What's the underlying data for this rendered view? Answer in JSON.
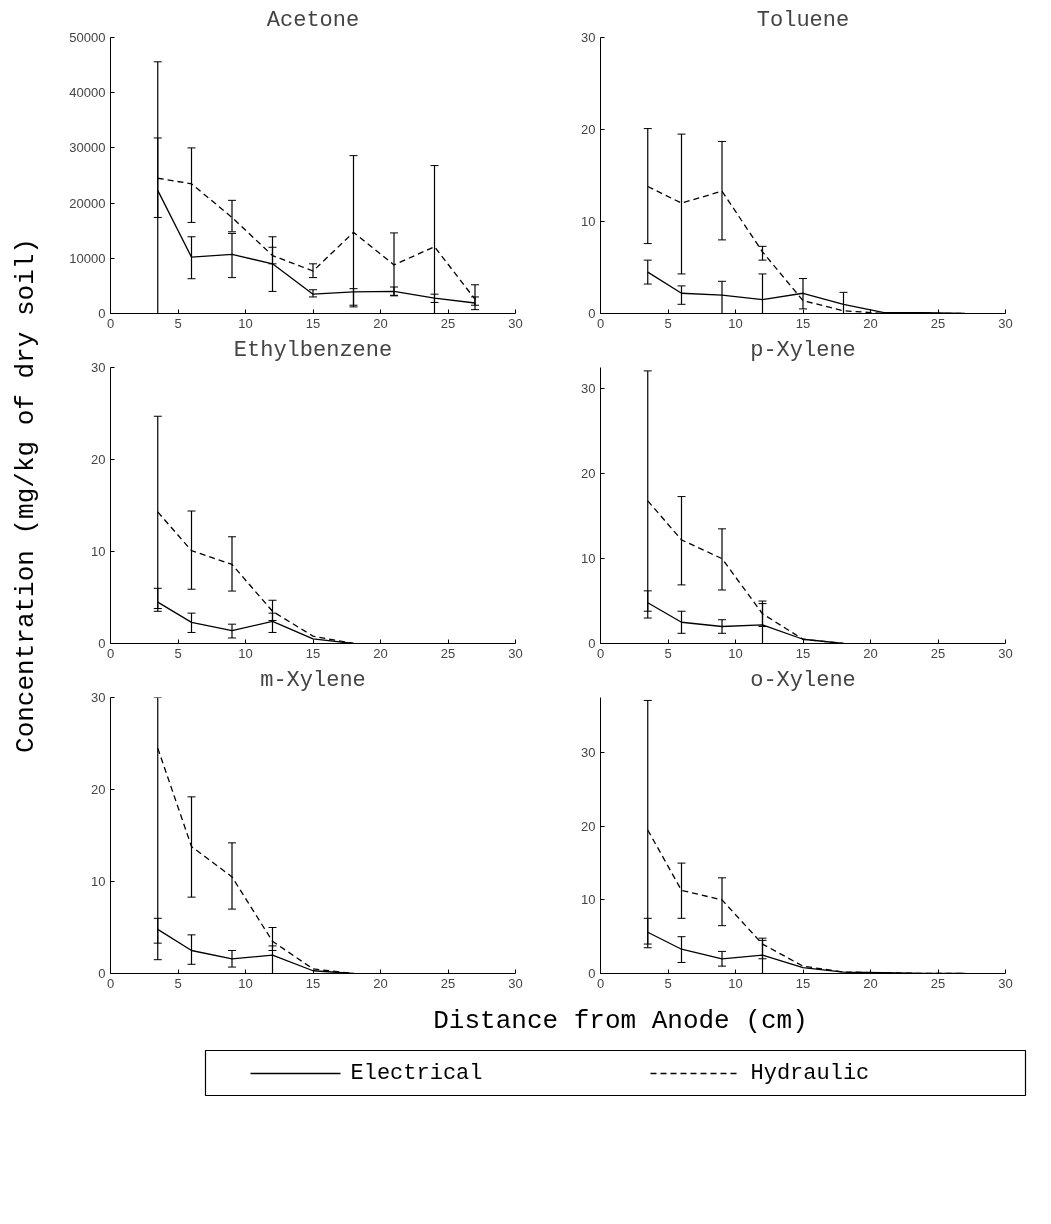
{
  "chart_data": [
    {
      "type": "line",
      "title": "Acetone",
      "ylabel": "Concentration (mg/kg of dry soil)",
      "x": [
        3.5,
        6,
        9,
        12,
        15,
        18,
        21,
        24,
        27
      ],
      "xlim": [
        0,
        30
      ],
      "xticks": [
        0,
        5,
        10,
        15,
        20,
        25,
        30
      ],
      "ylim": [
        0,
        50000
      ],
      "yticks": [
        0,
        10000,
        20000,
        30000,
        40000,
        50000
      ],
      "grid": false,
      "marker": "none",
      "series": [
        {
          "color": "#000000",
          "line_style": "solid",
          "values": [
            22300,
            10200,
            10700,
            9000,
            3500,
            3900,
            4000,
            2800,
            1900
          ],
          "errors": [
            [
              17400,
              31800
            ],
            [
              6300,
              13900
            ],
            [
              6500,
              14500
            ],
            [
              4000,
              13900
            ],
            [
              3000,
              4300
            ],
            [
              1200,
              4500
            ],
            [
              3200,
              4800
            ],
            [
              2000,
              3500
            ],
            [
              700,
              3000
            ]
          ]
        },
        {
          "color": "#000000",
          "line_style": "dashed",
          "values": [
            24500,
            23500,
            17400,
            10500,
            7700,
            14700,
            8800,
            12100,
            2600
          ],
          "errors": [
            [
              0,
              45600
            ],
            [
              16500,
              30000
            ],
            [
              14800,
              20500
            ],
            [
              9000,
              12000
            ],
            [
              6500,
              9000
            ],
            [
              1500,
              28600
            ],
            [
              3300,
              14600
            ],
            [
              0,
              26800
            ],
            [
              1500,
              5200
            ]
          ]
        }
      ]
    },
    {
      "type": "line",
      "title": "Toluene",
      "x": [
        3.5,
        6,
        9,
        12,
        15,
        18,
        21,
        24,
        27
      ],
      "xlim": [
        0,
        30
      ],
      "xticks": [
        0,
        5,
        10,
        15,
        20,
        25,
        30
      ],
      "ylim": [
        0,
        30
      ],
      "yticks": [
        0,
        10,
        20,
        30
      ],
      "grid": false,
      "marker": "none",
      "series": [
        {
          "color": "#000000",
          "line_style": "solid",
          "values": [
            4.5,
            2.2,
            2.0,
            1.5,
            2.2,
            1.0,
            0.1,
            0.1,
            0
          ],
          "errors": [
            [
              3.2,
              5.8
            ],
            [
              1.0,
              3.0
            ],
            [
              0,
              3.5
            ],
            [
              0,
              4.3
            ],
            [
              0.5,
              3.8
            ],
            [
              0,
              2.3
            ],
            null,
            null,
            null
          ]
        },
        {
          "color": "#000000",
          "line_style": "dashed",
          "values": [
            13.8,
            12.0,
            13.3,
            6.7,
            1.4,
            0.3,
            0,
            0,
            0
          ],
          "errors": [
            [
              7.6,
              20.1
            ],
            [
              4.3,
              19.5
            ],
            [
              8.0,
              18.7
            ],
            [
              5.8,
              7.3
            ],
            null,
            null,
            null,
            null,
            null
          ]
        }
      ]
    },
    {
      "type": "line",
      "title": "Ethylbenzene",
      "x": [
        3.5,
        6,
        9,
        12,
        15,
        18
      ],
      "xlim": [
        0,
        30
      ],
      "xticks": [
        0,
        5,
        10,
        15,
        20,
        25,
        30
      ],
      "ylim": [
        0,
        30
      ],
      "yticks": [
        0,
        10,
        20,
        30
      ],
      "grid": false,
      "marker": "none",
      "series": [
        {
          "color": "#000000",
          "line_style": "solid",
          "values": [
            4.5,
            2.3,
            1.4,
            2.4,
            0.5,
            0
          ],
          "errors": [
            [
              3.5,
              6.0
            ],
            [
              1.2,
              3.3
            ],
            [
              0.6,
              2.1
            ],
            [
              1.2,
              3.3
            ],
            null,
            null
          ]
        },
        {
          "color": "#000000",
          "line_style": "dashed",
          "values": [
            14.3,
            10.1,
            8.6,
            3.5,
            0.8,
            0
          ],
          "errors": [
            [
              3.8,
              24.7
            ],
            [
              5.9,
              14.4
            ],
            [
              5.7,
              11.6
            ],
            [
              2.5,
              4.7
            ],
            null,
            null
          ]
        }
      ]
    },
    {
      "type": "line",
      "title": "p-Xylene",
      "x": [
        3.5,
        6,
        9,
        12,
        15,
        18
      ],
      "xlim": [
        0,
        30
      ],
      "xticks": [
        0,
        5,
        10,
        15,
        20,
        25,
        30
      ],
      "ylim": [
        0,
        32.5
      ],
      "yticks": [
        0,
        10,
        20,
        30
      ],
      "grid": false,
      "marker": "none",
      "series": [
        {
          "color": "#000000",
          "line_style": "solid",
          "values": [
            4.8,
            2.5,
            2.0,
            2.2,
            0.5,
            0
          ],
          "errors": [
            [
              3.8,
              6.2
            ],
            [
              1.2,
              3.8
            ],
            [
              1.2,
              2.8
            ],
            [
              0,
              4.7
            ],
            null,
            null
          ]
        },
        {
          "color": "#000000",
          "line_style": "dashed",
          "values": [
            16.8,
            12.2,
            10.0,
            3.5,
            0.5,
            0
          ],
          "errors": [
            [
              3.0,
              32.1
            ],
            [
              6.9,
              17.3
            ],
            [
              6.3,
              13.5
            ],
            [
              2.0,
              5.0
            ],
            null,
            null
          ]
        }
      ]
    },
    {
      "type": "line",
      "title": "m-Xylene",
      "x": [
        3.5,
        6,
        9,
        12,
        15,
        18
      ],
      "xlim": [
        0,
        30
      ],
      "xticks": [
        0,
        5,
        10,
        15,
        20,
        25,
        30
      ],
      "ylim": [
        0,
        30
      ],
      "yticks": [
        0,
        10,
        20,
        30
      ],
      "grid": false,
      "marker": "none",
      "series": [
        {
          "color": "#000000",
          "line_style": "solid",
          "values": [
            4.8,
            2.5,
            1.6,
            2.0,
            0.3,
            0
          ],
          "errors": [
            [
              1.5,
              6.0
            ],
            [
              1.0,
              4.2
            ],
            [
              0.7,
              2.5
            ],
            [
              0,
              3.0
            ],
            null,
            null
          ]
        },
        {
          "color": "#000000",
          "line_style": "dashed",
          "values": [
            24.5,
            13.8,
            10.5,
            3.5,
            0.5,
            0
          ],
          "errors": [
            [
              3.3,
              30
            ],
            [
              8.3,
              19.2
            ],
            [
              7.0,
              14.2
            ],
            [
              2.5,
              5.0
            ],
            null,
            null
          ]
        }
      ]
    },
    {
      "type": "line",
      "title": "o-Xylene",
      "xlabel": "Distance from Anode (cm)",
      "legend": "bottom",
      "x": [
        3.5,
        6,
        9,
        12,
        15,
        18,
        21,
        24,
        27
      ],
      "xlim": [
        0,
        30
      ],
      "xticks": [
        0,
        5,
        10,
        15,
        20,
        25,
        30
      ],
      "ylim": [
        0,
        37.5
      ],
      "yticks": [
        0,
        10,
        20,
        30
      ],
      "grid": false,
      "marker": "none",
      "series": [
        {
          "name": "Electrical",
          "color": "#000000",
          "line_style": "solid",
          "values": [
            5.6,
            3.3,
            2.0,
            2.5,
            0.8,
            0.2,
            0.1,
            0,
            0
          ],
          "errors": [
            [
              3.5,
              7.5
            ],
            [
              1.5,
              5.0
            ],
            [
              1.0,
              3.0
            ],
            [
              0,
              4.5
            ],
            null,
            null,
            null,
            null,
            null
          ]
        },
        {
          "name": "Hydraulic",
          "color": "#000000",
          "line_style": "dashed",
          "values": [
            19.5,
            11.3,
            10.0,
            4.0,
            1.0,
            0.2,
            0.1,
            0,
            0
          ],
          "errors": [
            [
              4.0,
              37.1
            ],
            [
              7.5,
              15.0
            ],
            [
              6.5,
              13.0
            ],
            [
              2.0,
              4.8
            ],
            null,
            null,
            null,
            null,
            null
          ]
        }
      ]
    }
  ]
}
